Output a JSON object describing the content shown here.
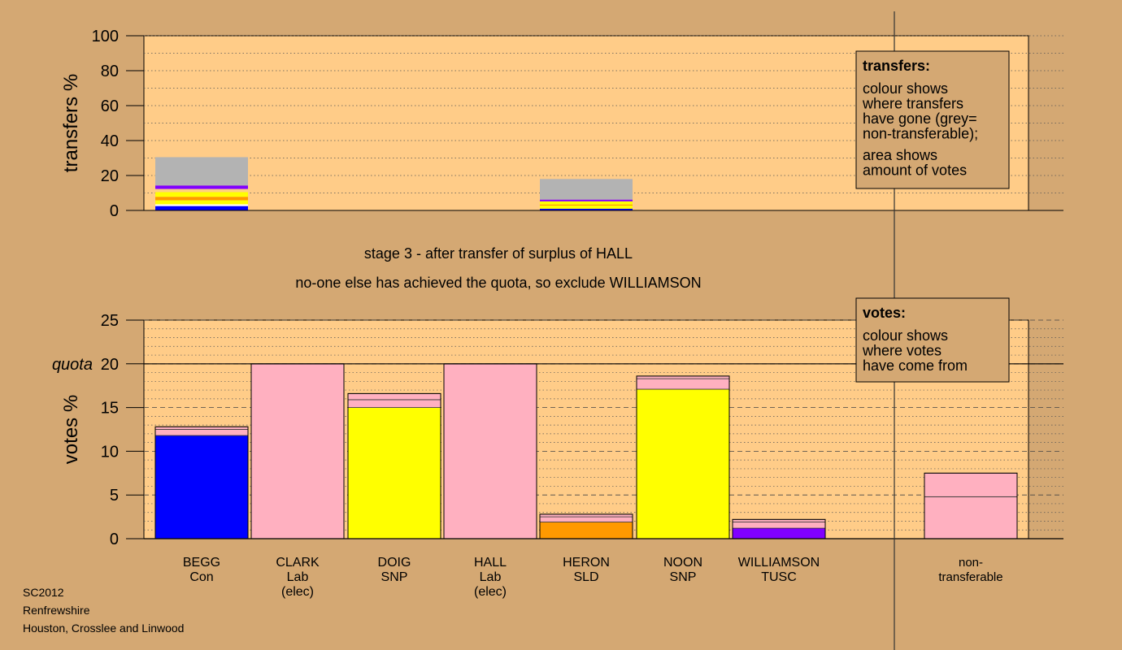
{
  "chart_data": [
    {
      "type": "bar",
      "stacked": true,
      "ylabel": "transfers %",
      "ylim": [
        0,
        100
      ],
      "yticks": [
        0,
        20,
        40,
        60,
        80,
        100
      ],
      "categories": [
        "BEGG",
        "CLARK",
        "DOIG",
        "HALL",
        "HERON",
        "NOON",
        "WILLIAMSON"
      ],
      "bars": [
        {
          "category": "BEGG",
          "segments": [
            {
              "color": "#0000ff",
              "from": 0,
              "to": 2.5
            },
            {
              "color": "#ffffff",
              "from": 2.5,
              "to": 3.5
            },
            {
              "color": "#ffff00",
              "from": 3.5,
              "to": 5.8
            },
            {
              "color": "#ff9900",
              "from": 5.8,
              "to": 7.8
            },
            {
              "color": "#ffff00",
              "from": 7.8,
              "to": 10.5
            },
            {
              "color": "#ffd080",
              "from": 10.5,
              "to": 12.3
            },
            {
              "color": "#8000ff",
              "from": 12.3,
              "to": 14.3
            },
            {
              "color": "#b3b3b3",
              "from": 14.3,
              "to": 30.5
            }
          ]
        },
        {
          "category": "HERON",
          "segments": [
            {
              "color": "#0000ff",
              "from": 0,
              "to": 1.0
            },
            {
              "color": "#ffff00",
              "from": 1.0,
              "to": 2.8
            },
            {
              "color": "#ff9900",
              "from": 2.8,
              "to": 3.4
            },
            {
              "color": "#ffff00",
              "from": 3.4,
              "to": 5.2
            },
            {
              "color": "#8000ff",
              "from": 5.2,
              "to": 6.2
            },
            {
              "color": "#b3b3b3",
              "from": 6.2,
              "to": 18.0
            }
          ]
        }
      ],
      "legend": {
        "title": "transfers:",
        "lines": [
          "colour shows",
          "where transfers",
          "have gone (grey=",
          "non-transferable);"
        ],
        "lines2": [
          "area shows",
          "amount of votes"
        ]
      }
    },
    {
      "type": "bar",
      "stacked": true,
      "ylabel": "votes %",
      "ylim": [
        0,
        25
      ],
      "yticks": [
        0,
        5,
        10,
        15,
        20,
        25
      ],
      "quota": 20,
      "quota_label": "quota",
      "categories": [
        "BEGG",
        "CLARK",
        "DOIG",
        "HALL",
        "HERON",
        "NOON",
        "WILLIAMSON",
        "non-transferable"
      ],
      "bars": [
        {
          "category": "BEGG",
          "label": [
            "BEGG",
            "Con"
          ],
          "segments": [
            {
              "color": "#0000ff",
              "from": 0,
              "to": 11.8
            },
            {
              "color": "#ffb0c0",
              "from": 11.8,
              "to": 12.5
            },
            {
              "color": "#ffb0c0",
              "from": 12.5,
              "to": 12.8
            }
          ]
        },
        {
          "category": "CLARK",
          "label": [
            "CLARK",
            "Lab",
            "(elec)"
          ],
          "segments": [
            {
              "color": "#ffb0c0",
              "from": 0,
              "to": 20
            }
          ]
        },
        {
          "category": "DOIG",
          "label": [
            "DOIG",
            "SNP"
          ],
          "segments": [
            {
              "color": "#ffff00",
              "from": 0,
              "to": 15.0
            },
            {
              "color": "#ffb0c0",
              "from": 15.0,
              "to": 15.9
            },
            {
              "color": "#ffb0c0",
              "from": 15.9,
              "to": 16.6
            }
          ]
        },
        {
          "category": "HALL",
          "label": [
            "HALL",
            "Lab",
            "(elec)"
          ],
          "segments": [
            {
              "color": "#ffb0c0",
              "from": 0,
              "to": 20
            }
          ]
        },
        {
          "category": "HERON",
          "label": [
            "HERON",
            "SLD"
          ],
          "segments": [
            {
              "color": "#ff9900",
              "from": 0,
              "to": 1.9
            },
            {
              "color": "#ffb0c0",
              "from": 1.9,
              "to": 2.5
            },
            {
              "color": "#ffb0c0",
              "from": 2.5,
              "to": 2.8
            }
          ]
        },
        {
          "category": "NOON",
          "label": [
            "NOON",
            "SNP"
          ],
          "segments": [
            {
              "color": "#ffff00",
              "from": 0,
              "to": 17.1
            },
            {
              "color": "#ffb0c0",
              "from": 17.1,
              "to": 18.3
            },
            {
              "color": "#ffb0c0",
              "from": 18.3,
              "to": 18.6
            }
          ]
        },
        {
          "category": "WILLIAMSON",
          "label": [
            "WILLIAMSON",
            "TUSC"
          ],
          "segments": [
            {
              "color": "#8000ff",
              "from": 0,
              "to": 1.2
            },
            {
              "color": "#ffb0c0",
              "from": 1.2,
              "to": 1.9
            },
            {
              "color": "#ffb0c0",
              "from": 1.9,
              "to": 2.2
            }
          ]
        },
        {
          "category": "non-transferable",
          "label": [
            "non-",
            "transferable"
          ],
          "segments": [
            {
              "color": "#ffb0c0",
              "from": 0,
              "to": 4.8
            },
            {
              "color": "#ffb0c0",
              "from": 4.8,
              "to": 7.5
            }
          ]
        }
      ],
      "legend": {
        "title": "votes:",
        "lines": [
          "colour shows",
          "where votes",
          "have come from"
        ]
      }
    }
  ],
  "stage_text": {
    "line1": "stage 3 - after transfer of surplus of HALL",
    "line2": "no-one else has achieved the quota, so exclude WILLIAMSON"
  },
  "footer": {
    "election": "SC2012",
    "council": "Renfrewshire",
    "ward": "Houston, Crosslee and Linwood"
  },
  "colors": {
    "background": "#d4a873",
    "plot_fill": "#ffcc88",
    "Con": "#0000ff",
    "Lab": "#ffb0c0",
    "SNP": "#ffff00",
    "SLD": "#ff9900",
    "TUSC": "#8000ff",
    "non_transferable": "#b3b3b3"
  }
}
